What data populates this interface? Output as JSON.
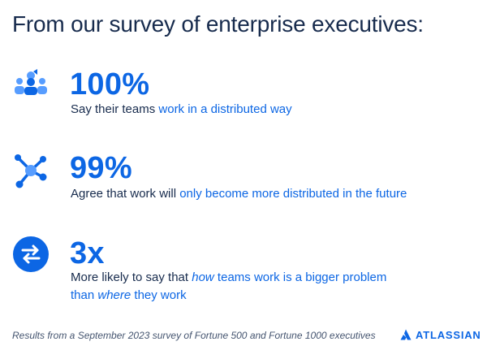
{
  "title": "From our survey of enterprise executives:",
  "stats": [
    {
      "value": "100%",
      "desc_plain": "Say their teams ",
      "desc_highlight": "work in a distributed way",
      "icon": "team-people-icon"
    },
    {
      "value": "99%",
      "desc_plain": "Agree that work will ",
      "desc_highlight": "only become more distributed in the future",
      "icon": "network-nodes-icon"
    },
    {
      "value": "3x",
      "desc_p1": "More likely to say that ",
      "desc_i1": "how",
      "desc_h1": " teams work is a bigger problem",
      "desc_h2": "than ",
      "desc_i2": "where",
      "desc_h3": " they work",
      "icon": "swap-arrows-icon"
    }
  ],
  "footer": "Results from a September 2023 survey of Fortune 500 and Fortune 1000 executives",
  "brand": "ATLASSIAN",
  "colors": {
    "accent": "#0c66e4",
    "accent_light": "#579dff",
    "text": "#172b4d"
  }
}
